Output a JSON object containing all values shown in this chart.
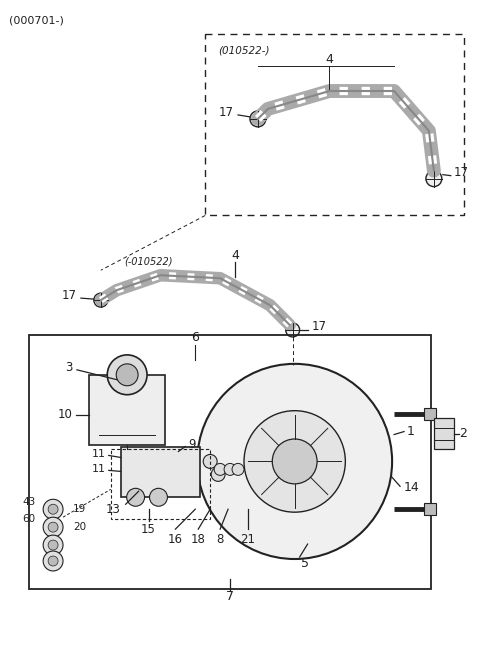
{
  "bg": "#ffffff",
  "lc": "#222222",
  "title": "(000701-)",
  "upper_box_label": "(010522-)",
  "lower_hose_label": "(-010522)",
  "figsize": [
    4.8,
    6.55
  ],
  "dpi": 100
}
